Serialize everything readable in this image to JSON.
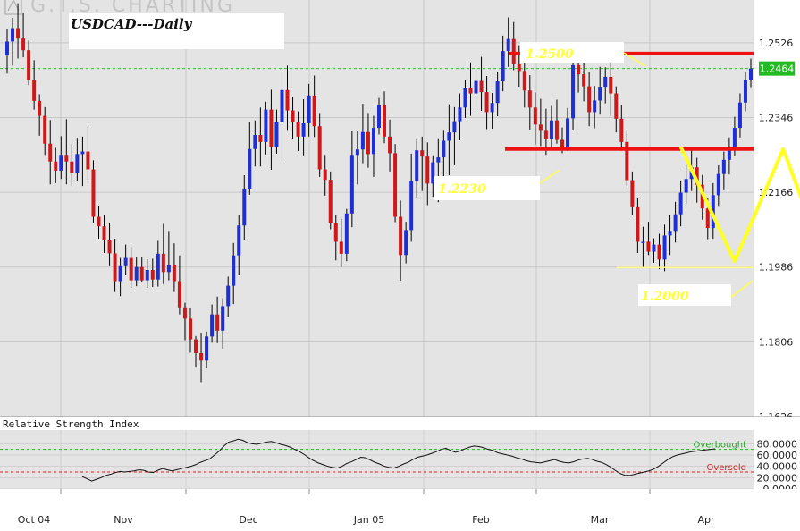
{
  "watermark": "G.T.S. CHARTING",
  "chart_data": [
    {
      "type": "candlestick",
      "title": "USDCAD---Daily",
      "ylim": [
        1.1626,
        1.2616
      ],
      "y_ticks": [
        "1.2526",
        "1.2346",
        "1.2166",
        "1.1986",
        "1.1806",
        "1.1626"
      ],
      "last_price_label": "1.2464",
      "x_ticks": [
        "Oct 04",
        "Nov",
        "Dec",
        "Jan 05",
        "Feb",
        "Mar",
        "Apr"
      ],
      "grid": true,
      "colors": {
        "up": "#1f2fd6",
        "down": "#d01818",
        "wick": "#000000",
        "background": "#e4e4e4",
        "dashed_price": "#2cc02c",
        "resistance": "#ee1111",
        "pattern": "#ffff33"
      },
      "candles": [
        [
          1.2496,
          1.256,
          1.2452,
          1.2529
        ],
        [
          1.2529,
          1.2586,
          1.2471,
          1.2561
        ],
        [
          1.2561,
          1.2621,
          1.2488,
          1.2536
        ],
        [
          1.2536,
          1.2598,
          1.2491,
          1.2508
        ],
        [
          1.2508,
          1.2531,
          1.2424,
          1.2436
        ],
        [
          1.2436,
          1.2484,
          1.2365,
          1.2386
        ],
        [
          1.2386,
          1.2402,
          1.2302,
          1.235
        ],
        [
          1.235,
          1.2371,
          1.2256,
          1.2283
        ],
        [
          1.2283,
          1.234,
          1.2185,
          1.224
        ],
        [
          1.224,
          1.2273,
          1.2188,
          1.2218
        ],
        [
          1.2218,
          1.2301,
          1.2198,
          1.2256
        ],
        [
          1.2256,
          1.2342,
          1.2185,
          1.224
        ],
        [
          1.224,
          1.2282,
          1.2181,
          1.2213
        ],
        [
          1.2213,
          1.2297,
          1.2194,
          1.2258
        ],
        [
          1.2258,
          1.23,
          1.2181,
          1.2264
        ],
        [
          1.2264,
          1.2324,
          1.2191,
          1.2221
        ],
        [
          1.2221,
          1.2243,
          1.2091,
          1.2107
        ],
        [
          1.2107,
          1.2132,
          1.2054,
          1.2084
        ],
        [
          1.2084,
          1.2112,
          1.202,
          1.205
        ],
        [
          1.205,
          1.2091,
          1.1988,
          1.2019
        ],
        [
          1.2019,
          1.2054,
          1.1926,
          1.1952
        ],
        [
          1.1952,
          1.2008,
          1.1916,
          1.1988
        ],
        [
          1.1988,
          1.204,
          1.1966,
          1.2008
        ],
        [
          1.2008,
          1.2034,
          1.1936,
          1.1954
        ],
        [
          1.1954,
          1.2009,
          1.194,
          1.1986
        ],
        [
          1.1986,
          1.2009,
          1.1949,
          1.1954
        ],
        [
          1.1954,
          1.2005,
          1.1936,
          1.1979
        ],
        [
          1.1979,
          1.2006,
          1.1938,
          1.1956
        ],
        [
          1.1956,
          1.2049,
          1.1939,
          1.2018
        ],
        [
          1.2018,
          1.209,
          1.1945,
          1.1974
        ],
        [
          1.1974,
          1.2073,
          1.1954,
          1.199
        ],
        [
          1.199,
          1.2043,
          1.1926,
          1.1952
        ],
        [
          1.1952,
          1.2014,
          1.1872,
          1.1889
        ],
        [
          1.1889,
          1.19,
          1.181,
          1.1862
        ],
        [
          1.1862,
          1.1888,
          1.178,
          1.1812
        ],
        [
          1.1812,
          1.182,
          1.1744,
          1.1779
        ],
        [
          1.1779,
          1.1826,
          1.1709,
          1.1761
        ],
        [
          1.1761,
          1.1831,
          1.1742,
          1.1819
        ],
        [
          1.1819,
          1.1896,
          1.1804,
          1.1872
        ],
        [
          1.1872,
          1.1915,
          1.1803,
          1.1833
        ],
        [
          1.1833,
          1.1911,
          1.179,
          1.1892
        ],
        [
          1.1892,
          1.1963,
          1.1865,
          1.1941
        ],
        [
          1.1941,
          1.2044,
          1.1897,
          1.2014
        ],
        [
          1.2014,
          1.2112,
          1.1966,
          1.2086
        ],
        [
          1.2086,
          1.2207,
          1.2052,
          1.2175
        ],
        [
          1.2175,
          1.2336,
          1.216,
          1.227
        ],
        [
          1.227,
          1.2339,
          1.2228,
          1.2304
        ],
        [
          1.2304,
          1.237,
          1.2228,
          1.2287
        ],
        [
          1.2287,
          1.2384,
          1.2257,
          1.2365
        ],
        [
          1.2365,
          1.2413,
          1.222,
          1.2275
        ],
        [
          1.2275,
          1.2365,
          1.2259,
          1.2335
        ],
        [
          1.2335,
          1.2458,
          1.2245,
          1.2412
        ],
        [
          1.2412,
          1.2471,
          1.2316,
          1.2363
        ],
        [
          1.2363,
          1.2396,
          1.2295,
          1.2335
        ],
        [
          1.2335,
          1.2361,
          1.2265,
          1.23
        ],
        [
          1.23,
          1.239,
          1.2255,
          1.2332
        ],
        [
          1.2332,
          1.2427,
          1.23,
          1.2399
        ],
        [
          1.2399,
          1.2447,
          1.2299,
          1.2325
        ],
        [
          1.2325,
          1.2357,
          1.2203,
          1.2221
        ],
        [
          1.2221,
          1.2256,
          1.2158,
          1.2196
        ],
        [
          1.2196,
          1.2216,
          1.2077,
          1.2093
        ],
        [
          1.2093,
          1.2112,
          1.2002,
          1.2047
        ],
        [
          1.2047,
          1.2102,
          1.1986,
          1.2018
        ],
        [
          1.2018,
          1.2126,
          1.2,
          1.2115
        ],
        [
          1.2115,
          1.2314,
          1.2082,
          1.2256
        ],
        [
          1.2256,
          1.2313,
          1.2185,
          1.2269
        ],
        [
          1.2269,
          1.2379,
          1.2236,
          1.2311
        ],
        [
          1.2311,
          1.2357,
          1.2225,
          1.2258
        ],
        [
          1.2258,
          1.235,
          1.2203,
          1.2321
        ],
        [
          1.2321,
          1.2393,
          1.2305,
          1.2376
        ],
        [
          1.2376,
          1.2409,
          1.2284,
          1.23
        ],
        [
          1.23,
          1.2341,
          1.2216,
          1.226
        ],
        [
          1.226,
          1.2282,
          1.2094,
          1.2107
        ],
        [
          1.2107,
          1.2146,
          1.1953,
          1.2015
        ],
        [
          1.2015,
          1.2095,
          1.1995,
          1.2075
        ],
        [
          1.2075,
          1.2259,
          1.2047,
          1.2193
        ],
        [
          1.2193,
          1.2293,
          1.2153,
          1.2267
        ],
        [
          1.2267,
          1.23,
          1.2169,
          1.2252
        ],
        [
          1.2252,
          1.2286,
          1.2135,
          1.2187
        ],
        [
          1.2187,
          1.2255,
          1.2155,
          1.2238
        ],
        [
          1.2238,
          1.2296,
          1.2142,
          1.225
        ],
        [
          1.225,
          1.2316,
          1.2189,
          1.229
        ],
        [
          1.229,
          1.2378,
          1.2207,
          1.231
        ],
        [
          1.231,
          1.2371,
          1.2231,
          1.2337
        ],
        [
          1.2337,
          1.2404,
          1.2291,
          1.237
        ],
        [
          1.237,
          1.2436,
          1.2345,
          1.2418
        ],
        [
          1.2418,
          1.2479,
          1.235,
          1.2404
        ],
        [
          1.2404,
          1.2462,
          1.2362,
          1.2434
        ],
        [
          1.2434,
          1.2492,
          1.2362,
          1.2407
        ],
        [
          1.2407,
          1.2446,
          1.2318,
          1.2359
        ],
        [
          1.2359,
          1.2405,
          1.2319,
          1.2381
        ],
        [
          1.2381,
          1.2455,
          1.2349,
          1.2433
        ],
        [
          1.2433,
          1.2543,
          1.2409,
          1.2506
        ],
        [
          1.2506,
          1.2587,
          1.2468,
          1.2535
        ],
        [
          1.2535,
          1.2576,
          1.246,
          1.2474
        ],
        [
          1.2474,
          1.252,
          1.242,
          1.2458
        ],
        [
          1.2458,
          1.2478,
          1.237,
          1.2411
        ],
        [
          1.2411,
          1.2448,
          1.2317,
          1.237
        ],
        [
          1.237,
          1.2406,
          1.2281,
          1.2329
        ],
        [
          1.2329,
          1.2391,
          1.2277,
          1.2316
        ],
        [
          1.2316,
          1.2367,
          1.2256,
          1.2294
        ],
        [
          1.2294,
          1.2374,
          1.2269,
          1.2339
        ],
        [
          1.2339,
          1.2389,
          1.2283,
          1.2292
        ],
        [
          1.2292,
          1.2322,
          1.226,
          1.2276
        ],
        [
          1.2276,
          1.2369,
          1.2265,
          1.2344
        ],
        [
          1.2344,
          1.2494,
          1.2317,
          1.2472
        ],
        [
          1.2472,
          1.2512,
          1.2406,
          1.245
        ],
        [
          1.245,
          1.2498,
          1.2385,
          1.2421
        ],
        [
          1.2421,
          1.2456,
          1.2325,
          1.2359
        ],
        [
          1.2359,
          1.2422,
          1.232,
          1.2387
        ],
        [
          1.2387,
          1.2468,
          1.2353,
          1.242
        ],
        [
          1.242,
          1.2467,
          1.238,
          1.2444
        ],
        [
          1.2444,
          1.2508,
          1.235,
          1.2404
        ],
        [
          1.2404,
          1.2421,
          1.231,
          1.2343
        ],
        [
          1.2343,
          1.2376,
          1.2266,
          1.2287
        ],
        [
          1.2287,
          1.2312,
          1.218,
          1.2195
        ],
        [
          1.2195,
          1.2216,
          1.2111,
          1.213
        ],
        [
          1.213,
          1.2151,
          1.202,
          1.2047
        ],
        [
          1.2047,
          1.2083,
          1.1985,
          1.2047
        ],
        [
          1.2047,
          1.2095,
          1.2015,
          1.2023
        ],
        [
          1.2023,
          1.2055,
          1.1996,
          1.204
        ],
        [
          1.204,
          1.2066,
          1.1981,
          1.2004
        ],
        [
          1.2004,
          1.2088,
          1.1976,
          1.2062
        ],
        [
          1.2062,
          1.2111,
          1.2015,
          1.2073
        ],
        [
          1.2073,
          1.2143,
          1.2045,
          1.2113
        ],
        [
          1.2113,
          1.2192,
          1.2084,
          1.2165
        ],
        [
          1.2165,
          1.2232,
          1.2138,
          1.2198
        ],
        [
          1.2198,
          1.2274,
          1.2169,
          1.2226
        ],
        [
          1.2226,
          1.2249,
          1.2141,
          1.2184
        ],
        [
          1.2184,
          1.2208,
          1.21,
          1.2127
        ],
        [
          1.2127,
          1.2152,
          1.2053,
          1.208
        ],
        [
          1.208,
          1.2188,
          1.2054,
          1.2159
        ],
        [
          1.2159,
          1.2231,
          1.2131,
          1.221
        ],
        [
          1.221,
          1.2264,
          1.2173,
          1.2244
        ],
        [
          1.2244,
          1.2298,
          1.2209,
          1.2272
        ],
        [
          1.2272,
          1.2348,
          1.2253,
          1.2321
        ],
        [
          1.2321,
          1.2404,
          1.2298,
          1.2382
        ],
        [
          1.2382,
          1.2456,
          1.2361,
          1.2437
        ],
        [
          1.2437,
          1.2488,
          1.2419,
          1.2464
        ]
      ],
      "annotations": [
        {
          "label": "1.2500",
          "value": 1.25
        },
        {
          "label": "1.2230",
          "value": 1.227
        },
        {
          "label": "1.2000",
          "value": 1.1985
        }
      ],
      "pattern_line": [
        [
          125,
          1.2275
        ],
        [
          135,
          1.2
        ],
        [
          144,
          1.227
        ],
        [
          150,
          1.206
        ],
        [
          158,
          1.227
        ],
        [
          165,
          1.25
        ],
        [
          170,
          1.2235
        ],
        [
          175,
          1.25
        ],
        [
          176,
          1.2275
        ]
      ]
    },
    {
      "type": "line",
      "title": "Relative Strength Index",
      "ylim": [
        0,
        90
      ],
      "y_ticks": [
        "80.0000",
        "60.0000",
        "40.0000",
        "20.0000",
        "0.0000"
      ],
      "levels": [
        {
          "label": "Overbought",
          "value": 70
        },
        {
          "label": "Oversold",
          "value": 30
        }
      ],
      "series": [
        {
          "values": [
            22,
            18,
            14,
            17,
            20,
            24,
            26,
            29,
            31,
            30,
            31,
            32,
            34,
            33,
            30,
            29,
            33,
            36,
            34,
            32,
            34,
            36,
            38,
            40,
            43,
            47,
            50,
            53,
            60,
            67,
            76,
            83,
            85,
            88,
            86,
            82,
            80,
            79,
            81,
            83,
            84,
            82,
            79,
            77,
            74,
            70,
            66,
            61,
            55,
            50,
            46,
            43,
            40,
            38,
            37,
            40,
            45,
            48,
            52,
            56,
            55,
            51,
            47,
            44,
            40,
            38,
            37,
            40,
            44,
            47,
            52,
            56,
            58,
            60,
            63,
            66,
            70,
            72,
            68,
            65,
            67,
            71,
            74,
            76,
            75,
            73,
            70,
            68,
            64,
            62,
            60,
            58,
            55,
            53,
            50,
            48,
            47,
            46,
            48,
            50,
            52,
            49,
            47,
            46,
            48,
            51,
            53,
            54,
            52,
            49,
            47,
            43,
            38,
            32,
            27,
            24,
            24,
            26,
            28,
            30,
            32,
            35,
            40,
            46,
            52,
            57,
            60,
            62,
            64,
            66,
            67,
            68,
            69,
            70,
            71
          ]
        }
      ]
    }
  ]
}
